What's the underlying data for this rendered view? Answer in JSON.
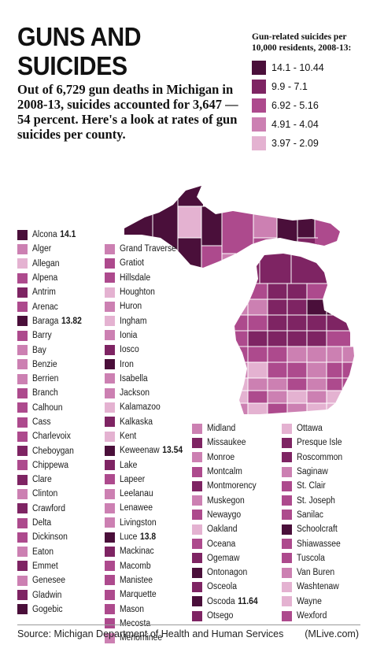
{
  "header": {
    "title_line1": "GUNS AND",
    "title_line2": "SUICIDES"
  },
  "intro": "Out of 6,729 gun deaths in Michigan in 2008-13, suicides accounted for 3,647 — 54 percent. Here's a look at rates of gun suicides per county.",
  "legend": {
    "title": "Gun-related suicides per 10,000 residents, 2008-13:",
    "items": [
      {
        "label": "14.1 - 10.44",
        "color": "#4a0f3a"
      },
      {
        "label": "9.9 - 7.1",
        "color": "#7e2463"
      },
      {
        "label": "6.92 - 5.16",
        "color": "#ad4a8d"
      },
      {
        "label": "4.91 - 4.04",
        "color": "#cc80b2"
      },
      {
        "label": "3.97 - 2.09",
        "color": "#e4b2d1"
      }
    ]
  },
  "colors": [
    "#4a0f3a",
    "#7e2463",
    "#ad4a8d",
    "#cc80b2",
    "#e4b2d1"
  ],
  "counties": [
    {
      "name": "Alcona",
      "value": "14.1",
      "class": 0
    },
    {
      "name": "Alger",
      "class": 3
    },
    {
      "name": "Allegan",
      "class": 4
    },
    {
      "name": "Alpena",
      "class": 2
    },
    {
      "name": "Antrim",
      "class": 1
    },
    {
      "name": "Arenac",
      "class": 2
    },
    {
      "name": "Baraga",
      "value": "13.82",
      "class": 0
    },
    {
      "name": "Barry",
      "class": 2
    },
    {
      "name": "Bay",
      "class": 3
    },
    {
      "name": "Benzie",
      "class": 3
    },
    {
      "name": "Berrien",
      "class": 3
    },
    {
      "name": "Branch",
      "class": 2
    },
    {
      "name": "Calhoun",
      "class": 2
    },
    {
      "name": "Cass",
      "class": 2
    },
    {
      "name": "Charlevoix",
      "class": 2
    },
    {
      "name": "Cheboygan",
      "class": 1
    },
    {
      "name": "Chippewa",
      "class": 2
    },
    {
      "name": "Clare",
      "class": 1
    },
    {
      "name": "Clinton",
      "class": 3
    },
    {
      "name": "Crawford",
      "class": 1
    },
    {
      "name": "Delta",
      "class": 2
    },
    {
      "name": "Dickinson",
      "class": 2
    },
    {
      "name": "Eaton",
      "class": 3
    },
    {
      "name": "Emmet",
      "class": 1
    },
    {
      "name": "Genesee",
      "class": 3
    },
    {
      "name": "Gladwin",
      "class": 1
    },
    {
      "name": "Gogebic",
      "class": 0
    },
    {
      "name": "Grand Traverse",
      "class": 3
    },
    {
      "name": "Gratiot",
      "class": 2
    },
    {
      "name": "Hillsdale",
      "class": 2
    },
    {
      "name": "Houghton",
      "class": 4
    },
    {
      "name": "Huron",
      "class": 3
    },
    {
      "name": "Ingham",
      "class": 4
    },
    {
      "name": "Ionia",
      "class": 3
    },
    {
      "name": "Iosco",
      "class": 1
    },
    {
      "name": "Iron",
      "class": 0
    },
    {
      "name": "Isabella",
      "class": 3
    },
    {
      "name": "Jackson",
      "class": 3
    },
    {
      "name": "Kalamazoo",
      "class": 4
    },
    {
      "name": "Kalkaska",
      "class": 1
    },
    {
      "name": "Kent",
      "class": 4
    },
    {
      "name": "Keweenaw",
      "value": "13.54",
      "class": 0
    },
    {
      "name": "Lake",
      "class": 1
    },
    {
      "name": "Lapeer",
      "class": 2
    },
    {
      "name": "Leelanau",
      "class": 3
    },
    {
      "name": "Lenawee",
      "class": 3
    },
    {
      "name": "Livingston",
      "class": 3
    },
    {
      "name": "Luce",
      "value": "13.8",
      "class": 0
    },
    {
      "name": "Mackinac",
      "class": 1
    },
    {
      "name": "Macomb",
      "class": 2
    },
    {
      "name": "Manistee",
      "class": 2
    },
    {
      "name": "Marquette",
      "class": 2
    },
    {
      "name": "Mason",
      "class": 2
    },
    {
      "name": "Mecosta",
      "class": 2
    },
    {
      "name": "Menominee",
      "class": 3
    },
    {
      "name": "Midland",
      "class": 3
    },
    {
      "name": "Missaukee",
      "class": 1
    },
    {
      "name": "Monroe",
      "class": 3
    },
    {
      "name": "Montcalm",
      "class": 2
    },
    {
      "name": "Montmorency",
      "class": 1
    },
    {
      "name": "Muskegon",
      "class": 3
    },
    {
      "name": "Newaygo",
      "class": 2
    },
    {
      "name": "Oakland",
      "class": 4
    },
    {
      "name": "Oceana",
      "class": 2
    },
    {
      "name": "Ogemaw",
      "class": 1
    },
    {
      "name": "Ontonagon",
      "class": 0
    },
    {
      "name": "Osceola",
      "class": 1
    },
    {
      "name": "Oscoda",
      "value": "11.64",
      "class": 0
    },
    {
      "name": "Otsego",
      "class": 1
    },
    {
      "name": "Ottawa",
      "class": 4
    },
    {
      "name": "Presque Isle",
      "class": 1
    },
    {
      "name": "Roscommon",
      "class": 1
    },
    {
      "name": "Saginaw",
      "class": 3
    },
    {
      "name": "St. Clair",
      "class": 2
    },
    {
      "name": "St. Joseph",
      "class": 2
    },
    {
      "name": "Sanilac",
      "class": 2
    },
    {
      "name": "Schoolcraft",
      "class": 0
    },
    {
      "name": "Shiawassee",
      "class": 2
    },
    {
      "name": "Tuscola",
      "class": 2
    },
    {
      "name": "Van Buren",
      "class": 3
    },
    {
      "name": "Washtenaw",
      "class": 4
    },
    {
      "name": "Wayne",
      "class": 4
    },
    {
      "name": "Wexford",
      "class": 2
    }
  ],
  "footer": {
    "source": "Source: Michigan Department of Health and Human Services",
    "credit": "(MLive.com)"
  }
}
